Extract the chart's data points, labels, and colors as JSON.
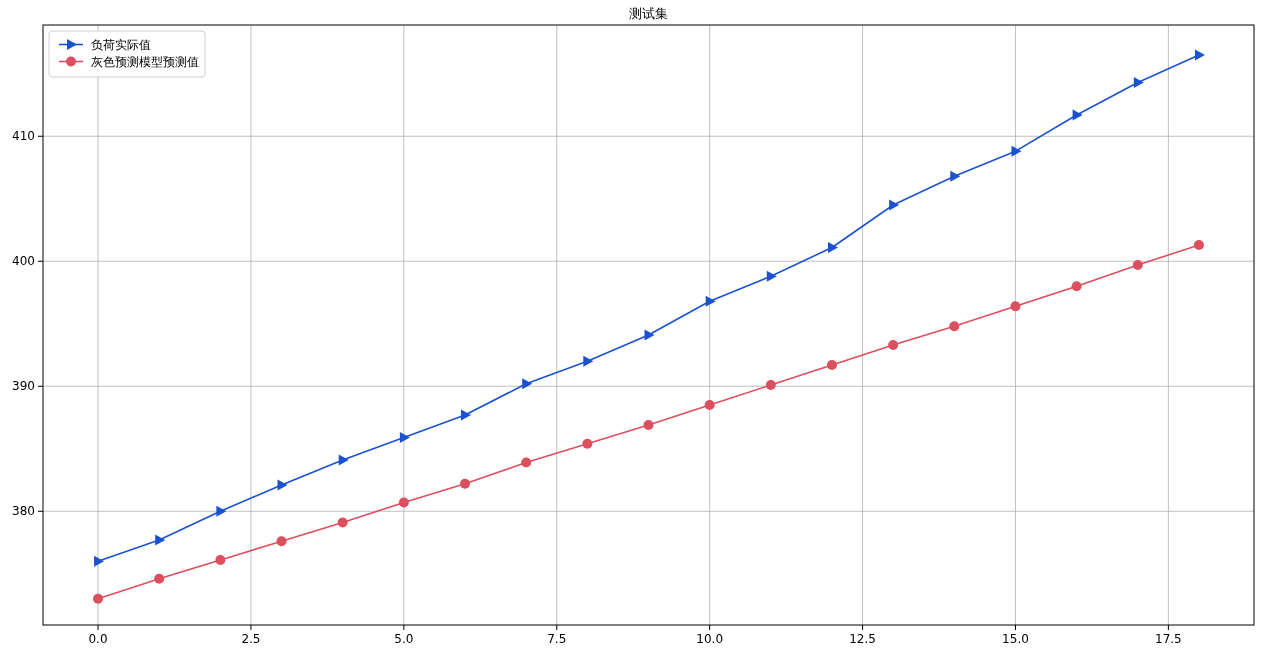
{
  "chart_data": {
    "type": "line",
    "title": "测试集",
    "x": [
      0,
      1,
      2,
      3,
      4,
      5,
      6,
      7,
      8,
      9,
      10,
      11,
      12,
      13,
      14,
      15,
      16,
      17,
      18
    ],
    "series": [
      {
        "name": "负荷实际值",
        "color": "#1a52d0",
        "marker": "triangle",
        "values": [
          376.0,
          377.7,
          380.0,
          382.1,
          384.1,
          385.9,
          387.7,
          390.2,
          392.0,
          394.1,
          396.8,
          398.8,
          401.1,
          404.5,
          406.8,
          408.8,
          411.7,
          414.3,
          416.5
        ]
      },
      {
        "name": "灰色预测模型预测值",
        "color": "#dc4f5f",
        "marker": "circle",
        "values": [
          373.0,
          374.6,
          376.1,
          377.6,
          379.1,
          380.7,
          382.2,
          383.9,
          385.4,
          386.9,
          388.5,
          390.1,
          391.7,
          393.3,
          394.8,
          396.4,
          398.0,
          399.7,
          401.3
        ]
      }
    ],
    "xlim": [
      -0.9,
      18.9
    ],
    "xticks": [
      {
        "value": 0,
        "label": "0.0"
      },
      2.5,
      {
        "value": 5,
        "label": "5.0"
      },
      7.5,
      {
        "value": 10,
        "label": "10.0"
      },
      12.5,
      {
        "value": 15,
        "label": "15.0"
      },
      17.5
    ],
    "ylim": [
      370.9,
      418.9
    ],
    "yticks": [
      380,
      390,
      400,
      410
    ],
    "grid": true,
    "legend": "top left",
    "line_style": "solid"
  }
}
